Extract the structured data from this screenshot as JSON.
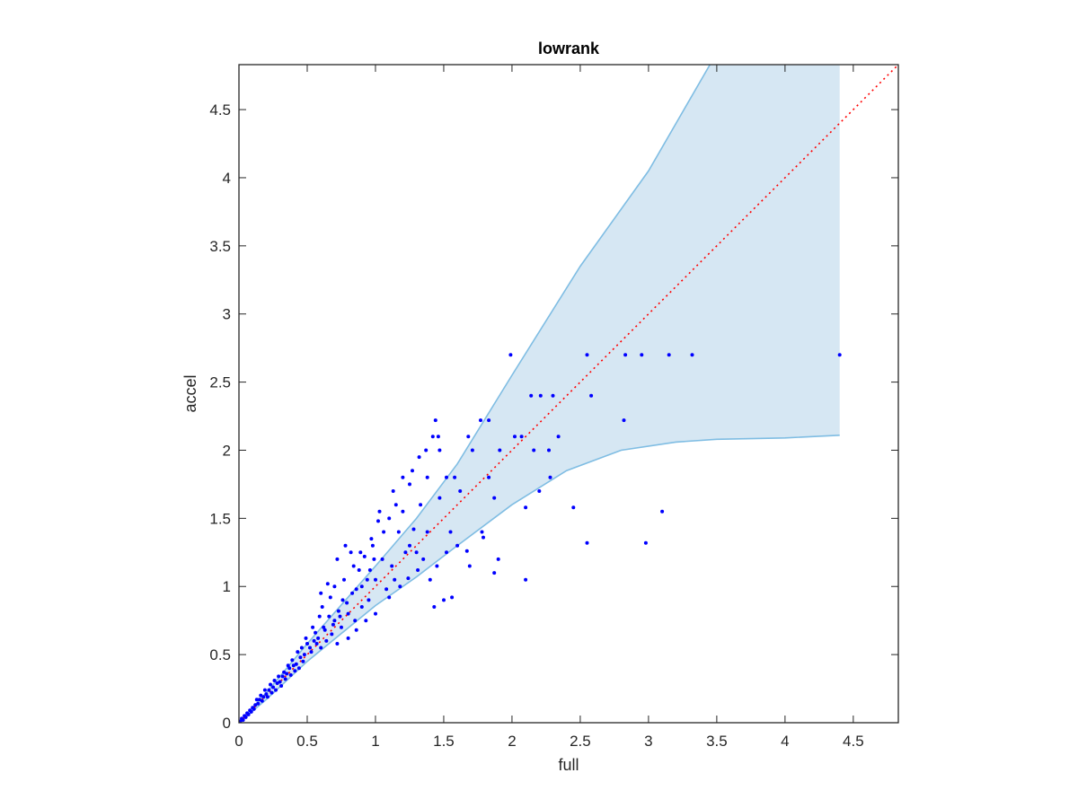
{
  "chart_data": {
    "type": "scatter",
    "title": "lowrank",
    "xlabel": "full",
    "ylabel": "accel",
    "xlim": [
      0,
      4.83
    ],
    "ylim": [
      0,
      4.83
    ],
    "xticks": [
      0,
      0.5,
      1,
      1.5,
      2,
      2.5,
      3,
      3.5,
      4,
      4.5
    ],
    "xtick_labels": [
      "0",
      "0.5",
      "1",
      "1.5",
      "2",
      "2.5",
      "3",
      "3.5",
      "4",
      "4.5"
    ],
    "yticks": [
      0,
      0.5,
      1,
      1.5,
      2,
      2.5,
      3,
      3.5,
      4,
      4.5
    ],
    "ytick_labels": [
      "0",
      "0.5",
      "1",
      "1.5",
      "2",
      "2.5",
      "3",
      "3.5",
      "4",
      "4.5"
    ],
    "grid": false,
    "colors": {
      "points": "#0000ff",
      "band_fill": "#d6e7f3",
      "band_edge": "#7fbde3",
      "reference": "#ff0000",
      "axes": "#262626"
    },
    "reference_line": {
      "style": "dotted",
      "x": [
        0,
        4.83
      ],
      "y": [
        0,
        4.83
      ]
    },
    "band": {
      "upper": [
        [
          0,
          0
        ],
        [
          0.2,
          0.22
        ],
        [
          0.5,
          0.58
        ],
        [
          1.0,
          1.15
        ],
        [
          1.3,
          1.5
        ],
        [
          1.6,
          1.9
        ],
        [
          2.0,
          2.55
        ],
        [
          2.5,
          3.35
        ],
        [
          3.0,
          4.05
        ],
        [
          3.45,
          4.83
        ],
        [
          4.4,
          4.83
        ]
      ],
      "lower": [
        [
          0,
          0
        ],
        [
          0.2,
          0.17
        ],
        [
          0.5,
          0.45
        ],
        [
          1.0,
          0.86
        ],
        [
          1.3,
          1.07
        ],
        [
          1.6,
          1.3
        ],
        [
          2.0,
          1.6
        ],
        [
          2.4,
          1.85
        ],
        [
          2.8,
          2.0
        ],
        [
          3.2,
          2.06
        ],
        [
          3.5,
          2.08
        ],
        [
          4.0,
          2.09
        ],
        [
          4.4,
          2.11
        ]
      ]
    },
    "points": [
      [
        1.99,
        2.7
      ],
      [
        2.55,
        2.7
      ],
      [
        2.83,
        2.7
      ],
      [
        2.95,
        2.7
      ],
      [
        3.15,
        2.7
      ],
      [
        3.32,
        2.7
      ],
      [
        4.4,
        2.7
      ],
      [
        2.14,
        2.4
      ],
      [
        2.21,
        2.4
      ],
      [
        2.3,
        2.4
      ],
      [
        2.58,
        2.4
      ],
      [
        1.44,
        2.22
      ],
      [
        1.77,
        2.22
      ],
      [
        1.83,
        2.22
      ],
      [
        2.82,
        2.22
      ],
      [
        1.42,
        2.1
      ],
      [
        1.46,
        2.1
      ],
      [
        1.68,
        2.1
      ],
      [
        2.02,
        2.1
      ],
      [
        2.07,
        2.1
      ],
      [
        2.34,
        2.1
      ],
      [
        1.37,
        2.0
      ],
      [
        1.47,
        2.0
      ],
      [
        1.71,
        2.0
      ],
      [
        1.91,
        2.0
      ],
      [
        2.16,
        2.0
      ],
      [
        2.27,
        2.0
      ],
      [
        1.2,
        1.8
      ],
      [
        1.38,
        1.8
      ],
      [
        1.52,
        1.8
      ],
      [
        1.58,
        1.8
      ],
      [
        1.83,
        1.8
      ],
      [
        2.28,
        1.8
      ],
      [
        1.47,
        1.65
      ],
      [
        1.87,
        1.65
      ],
      [
        1.62,
        1.7
      ],
      [
        2.2,
        1.7
      ],
      [
        2.45,
        1.58
      ],
      [
        2.1,
        1.58
      ],
      [
        3.1,
        1.55
      ],
      [
        1.78,
        1.4
      ],
      [
        1.79,
        1.36
      ],
      [
        1.67,
        1.26
      ],
      [
        1.9,
        1.2
      ],
      [
        2.55,
        1.32
      ],
      [
        2.98,
        1.32
      ],
      [
        1.69,
        1.15
      ],
      [
        1.87,
        1.1
      ],
      [
        2.1,
        1.05
      ],
      [
        1.43,
        0.85
      ],
      [
        1.56,
        0.92
      ],
      [
        1.5,
        0.9
      ],
      [
        1.6,
        1.3
      ],
      [
        1.35,
        1.2
      ],
      [
        1.25,
        1.3
      ],
      [
        1.2,
        1.55
      ],
      [
        1.15,
        1.6
      ],
      [
        1.1,
        1.5
      ],
      [
        1.02,
        1.48
      ],
      [
        0.98,
        1.3
      ],
      [
        0.92,
        1.22
      ],
      [
        0.88,
        1.12
      ],
      [
        0.82,
        1.25
      ],
      [
        0.78,
        1.3
      ],
      [
        0.72,
        1.2
      ],
      [
        0.65,
        1.02
      ],
      [
        0.6,
        0.95
      ],
      [
        1.05,
        1.2
      ],
      [
        1.12,
        1.15
      ],
      [
        1.18,
        1.0
      ],
      [
        1.08,
        0.98
      ],
      [
        0.95,
        0.9
      ],
      [
        0.9,
        0.85
      ],
      [
        0.85,
        0.75
      ],
      [
        0.8,
        0.8
      ],
      [
        0.75,
        0.7
      ],
      [
        0.7,
        0.75
      ],
      [
        0.68,
        0.65
      ],
      [
        0.62,
        0.7
      ],
      [
        0.58,
        0.62
      ],
      [
        0.55,
        0.6
      ],
      [
        0.52,
        0.55
      ],
      [
        0.48,
        0.5
      ],
      [
        0.45,
        0.48
      ],
      [
        0.42,
        0.43
      ],
      [
        0.4,
        0.42
      ],
      [
        0.37,
        0.4
      ],
      [
        0.35,
        0.36
      ],
      [
        0.32,
        0.34
      ],
      [
        0.3,
        0.3
      ],
      [
        0.28,
        0.29
      ],
      [
        0.25,
        0.26
      ],
      [
        0.22,
        0.24
      ],
      [
        0.2,
        0.21
      ],
      [
        0.18,
        0.19
      ],
      [
        0.15,
        0.17
      ],
      [
        0.12,
        0.13
      ],
      [
        0.1,
        0.11
      ],
      [
        0.08,
        0.09
      ],
      [
        0.06,
        0.07
      ],
      [
        0.04,
        0.05
      ],
      [
        0.02,
        0.03
      ],
      [
        0.01,
        0.01
      ],
      [
        1.28,
        1.42
      ],
      [
        1.31,
        1.12
      ],
      [
        1.4,
        1.05
      ],
      [
        1.45,
        1.15
      ],
      [
        1.52,
        1.25
      ],
      [
        1.55,
        1.4
      ],
      [
        1.22,
        1.25
      ],
      [
        1.17,
        1.4
      ],
      [
        1.0,
        1.05
      ],
      [
        0.96,
        1.12
      ],
      [
        0.86,
        0.98
      ],
      [
        0.76,
        0.9
      ],
      [
        0.73,
        0.82
      ],
      [
        0.66,
        0.78
      ],
      [
        0.64,
        0.6
      ],
      [
        0.6,
        0.55
      ],
      [
        0.56,
        0.66
      ],
      [
        0.5,
        0.58
      ],
      [
        1.1,
        0.92
      ],
      [
        1.0,
        0.8
      ],
      [
        0.93,
        0.75
      ],
      [
        0.86,
        0.68
      ],
      [
        0.8,
        0.62
      ],
      [
        0.72,
        0.58
      ],
      [
        1.24,
        1.06
      ],
      [
        1.14,
        1.05
      ],
      [
        1.3,
        1.25
      ],
      [
        1.38,
        1.4
      ],
      [
        1.33,
        1.6
      ],
      [
        1.25,
        1.75
      ],
      [
        1.06,
        1.4
      ],
      [
        0.99,
        1.2
      ],
      [
        0.94,
        1.05
      ],
      [
        0.9,
        1.0
      ],
      [
        0.83,
        0.95
      ],
      [
        0.79,
        0.88
      ],
      [
        0.74,
        0.78
      ],
      [
        0.69,
        0.72
      ],
      [
        0.63,
        0.68
      ],
      [
        0.57,
        0.58
      ],
      [
        0.53,
        0.52
      ],
      [
        0.47,
        0.45
      ],
      [
        0.44,
        0.4
      ],
      [
        0.41,
        0.38
      ],
      [
        0.38,
        0.35
      ],
      [
        0.34,
        0.32
      ],
      [
        0.31,
        0.27
      ],
      [
        0.27,
        0.24
      ],
      [
        0.24,
        0.22
      ],
      [
        0.21,
        0.19
      ],
      [
        0.17,
        0.16
      ],
      [
        0.14,
        0.14
      ],
      [
        0.11,
        0.1
      ],
      [
        0.09,
        0.08
      ],
      [
        0.07,
        0.06
      ],
      [
        0.05,
        0.04
      ],
      [
        0.03,
        0.02
      ],
      [
        0.13,
        0.17
      ],
      [
        0.16,
        0.2
      ],
      [
        0.19,
        0.24
      ],
      [
        0.23,
        0.28
      ],
      [
        0.26,
        0.31
      ],
      [
        0.29,
        0.34
      ],
      [
        0.33,
        0.37
      ],
      [
        0.36,
        0.42
      ],
      [
        0.39,
        0.46
      ],
      [
        0.43,
        0.52
      ],
      [
        0.46,
        0.55
      ],
      [
        0.49,
        0.62
      ],
      [
        0.54,
        0.7
      ],
      [
        0.59,
        0.78
      ],
      [
        0.61,
        0.85
      ],
      [
        0.67,
        0.92
      ],
      [
        0.7,
        1.0
      ],
      [
        0.77,
        1.05
      ],
      [
        0.84,
        1.15
      ],
      [
        0.89,
        1.25
      ],
      [
        0.97,
        1.35
      ],
      [
        1.03,
        1.55
      ],
      [
        1.13,
        1.7
      ],
      [
        1.27,
        1.85
      ],
      [
        1.32,
        1.95
      ]
    ]
  }
}
